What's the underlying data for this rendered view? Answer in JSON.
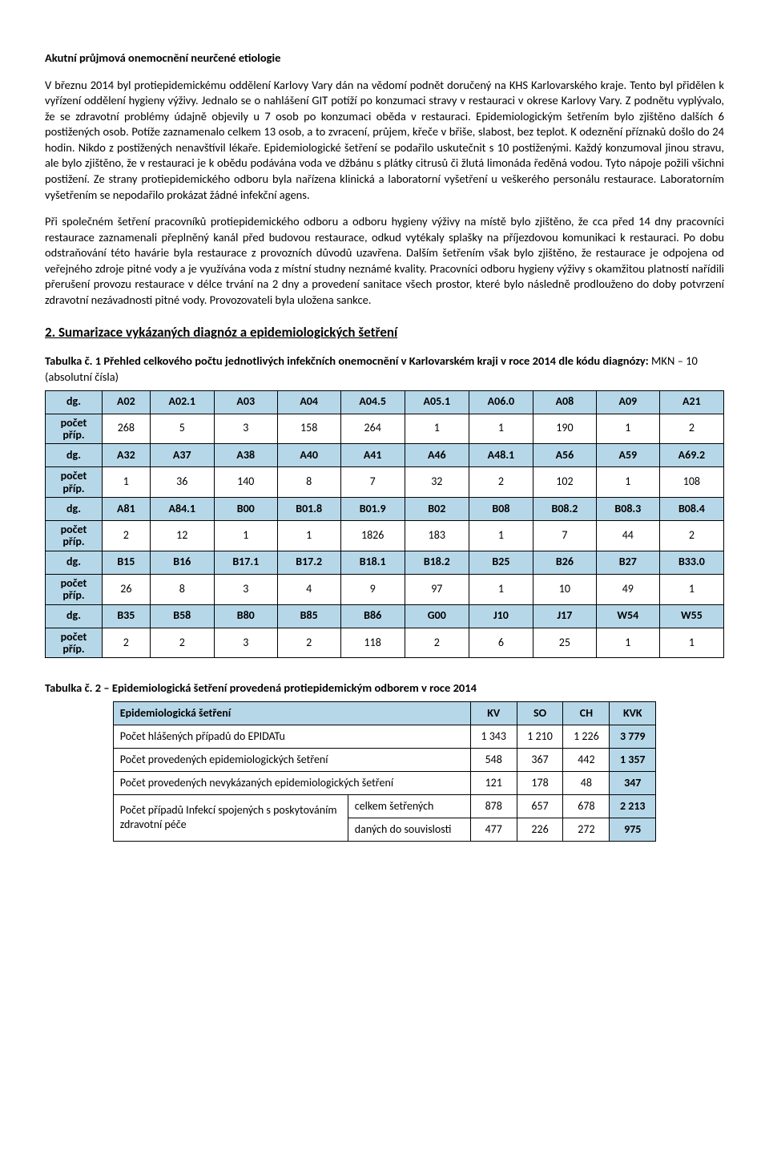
{
  "title": "Akutní průjmová onemocnění neurčené etiologie",
  "p1": "V březnu 2014 byl protiepidemickému oddělení Karlovy Vary dán na vědomí podnět doručený na KHS Karlovarského kraje. Tento byl přidělen k vyřízení oddělení hygieny výživy. Jednalo se o nahlášení GIT potíží po konzumaci stravy v restauraci v okrese Karlovy Vary. Z podnětu vyplývalo, že se zdravotní problémy údajně objevily u 7 osob po konzumaci oběda v restauraci. Epidemiologickým šetřením bylo zjištěno dalších 6 postižených osob. Potíže zaznamenalo celkem 13 osob, a to zvracení, průjem, křeče v břiše, slabost, bez teplot. K odeznění příznaků došlo do 24 hodin. Nikdo z postižených nenavštívil lékaře. Epidemiologické šetření se podařilo uskutečnit s 10 postiženými. Každý konzumoval jinou stravu, ale bylo zjištěno, že v restauraci je k obědu podávána voda ve džbánu s plátky citrusů či žlutá limonáda ředěná vodou. Tyto nápoje požili všichni postižení. Ze strany protiepidemického odboru byla nařízena klinická a laboratorní vyšetření u veškerého personálu restaurace. Laboratorním vyšetřením se nepodařilo prokázat žádné infekční agens.",
  "p2": "Při společném šetření pracovníků protiepidemického odboru a odboru hygieny výživy na místě bylo zjištěno, že cca před 14 dny pracovníci restaurace zaznamenali přeplněný kanál před budovou restaurace, odkud vytékaly splašky na příjezdovou komunikaci k restauraci. Po dobu odstraňování této havárie byla restaurace z provozních důvodů uzavřena. Dalším šetřením však bylo zjištěno, že restaurace je odpojena od veřejného zdroje pitné vody a je využívána voda z místní studny neznámé kvality. Pracovníci odboru hygieny výživy s okamžitou platností nařídili přerušení provozu restaurace v délce trvání na 2 dny a provedení sanitace všech prostor, které bylo následně prodlouženo do doby potvrzení zdravotní nezávadnosti pitné vody. Provozovateli byla uložena sankce.",
  "section2_heading": "2. Sumarizace vykázaných diagnóz a epidemiologických šetření",
  "t1_caption_bold": "Tabulka č. 1 Přehled celkového počtu jednotlivých infekčních onemocnění v Karlovarském kraji v roce 2014 dle kódu diagnózy: ",
  "t1_caption_norm": "MKN – 10 (absolutní čísla)",
  "t1_dg_label": "dg.",
  "t1_count_label": "počet příp.",
  "t1_rows": [
    {
      "codes": [
        "A02",
        "A02.1",
        "A03",
        "A04",
        "A04.5",
        "A05.1",
        "A06.0",
        "A08",
        "A09",
        "A21"
      ],
      "vals": [
        "268",
        "5",
        "3",
        "158",
        "264",
        "1",
        "1",
        "190",
        "1",
        "2"
      ]
    },
    {
      "codes": [
        "A32",
        "A37",
        "A38",
        "A40",
        "A41",
        "A46",
        "A48.1",
        "A56",
        "A59",
        "A69.2"
      ],
      "vals": [
        "1",
        "36",
        "140",
        "8",
        "7",
        "32",
        "2",
        "102",
        "1",
        "108"
      ]
    },
    {
      "codes": [
        "A81",
        "A84.1",
        "B00",
        "B01.8",
        "B01.9",
        "B02",
        "B08",
        "B08.2",
        "B08.3",
        "B08.4"
      ],
      "vals": [
        "2",
        "12",
        "1",
        "1",
        "1826",
        "183",
        "1",
        "7",
        "44",
        "2"
      ]
    },
    {
      "codes": [
        "B15",
        "B16",
        "B17.1",
        "B17.2",
        "B18.1",
        "B18.2",
        "B25",
        "B26",
        "B27",
        "B33.0"
      ],
      "vals": [
        "26",
        "8",
        "3",
        "4",
        "9",
        "97",
        "1",
        "10",
        "49",
        "1"
      ]
    },
    {
      "codes": [
        "B35",
        "B58",
        "B80",
        "B85",
        "B86",
        "G00",
        "J10",
        "J17",
        "W54",
        "W55"
      ],
      "vals": [
        "2",
        "2",
        "3",
        "2",
        "118",
        "2",
        "6",
        "25",
        "1",
        "1"
      ]
    }
  ],
  "t2_caption": "Tabulka č. 2 – Epidemiologická šetření provedená protiepidemickým odborem v roce 2014",
  "t2_header": [
    "Epidemiologická šetření",
    "KV",
    "SO",
    "CH",
    "KVK"
  ],
  "t2_r1": {
    "label": "Počet hlášených případů do EPIDATu",
    "v": [
      "1 343",
      "1 210",
      "1 226",
      "3 779"
    ]
  },
  "t2_r2": {
    "label": "Počet provedených epidemiologických šetření",
    "v": [
      "548",
      "367",
      "442",
      "1 357"
    ]
  },
  "t2_r3": {
    "label": "Počet provedených nevykázaných epidemiologických šetření",
    "v": [
      "121",
      "178",
      "48",
      "347"
    ]
  },
  "t2_r4_label": "Počet případů Infekcí spojených s poskytováním zdravotní péče",
  "t2_r4a": {
    "sub": "celkem šetřených",
    "v": [
      "878",
      "657",
      "678",
      "2 213"
    ]
  },
  "t2_r4b": {
    "sub": "daných do souvislosti",
    "v": [
      "477",
      "226",
      "272",
      "975"
    ]
  }
}
